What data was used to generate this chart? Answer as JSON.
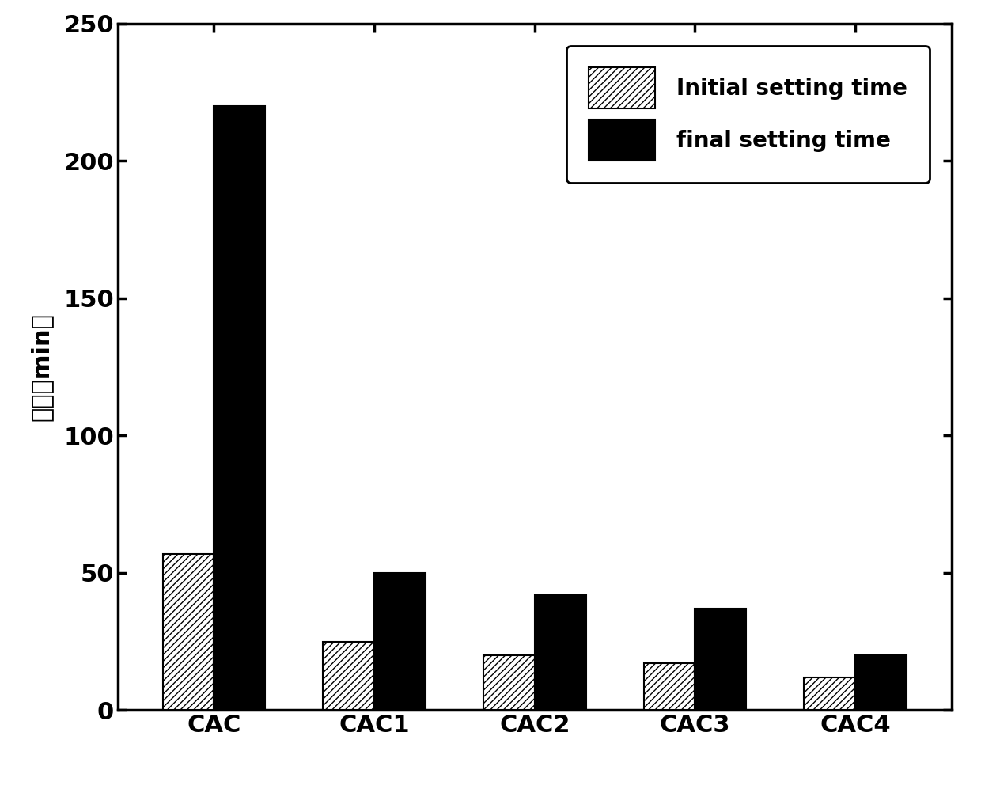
{
  "categories": [
    "CAC",
    "CAC1",
    "CAC2",
    "CAC3",
    "CAC4"
  ],
  "initial_setting_time": [
    57,
    25,
    20,
    17,
    12
  ],
  "final_setting_time": [
    220,
    50,
    42,
    37,
    20
  ],
  "ylabel": "时间（min）",
  "ylim": [
    0,
    250
  ],
  "yticks": [
    0,
    50,
    100,
    150,
    200,
    250
  ],
  "legend_initial": "Initial setting time",
  "legend_final": "final setting time",
  "bar_width": 0.32,
  "hatch_color": "#000000",
  "initial_facecolor": "#ffffff",
  "final_facecolor": "#000000",
  "background_color": "#ffffff",
  "spine_color": "#000000",
  "tick_fontsize": 22,
  "label_fontsize": 22,
  "legend_fontsize": 20
}
